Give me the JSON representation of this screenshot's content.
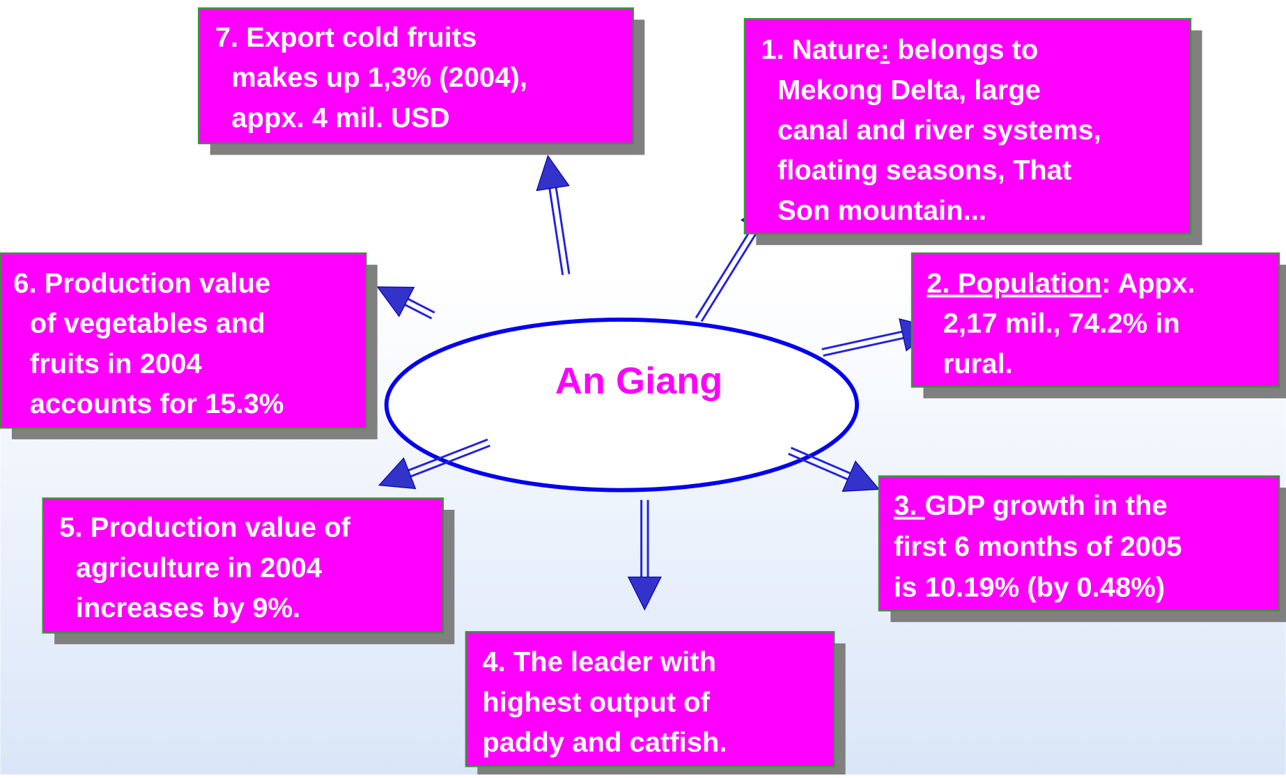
{
  "center": "An Giang",
  "nodes": [
    {
      "lines": [
        [
          "1. Nature",
          ":",
          " belongs to"
        ],
        "Mekong Delta, large",
        "canal and river systems,",
        "floating seasons, That",
        "Son mountain..."
      ]
    },
    {
      "lines": [
        [
          "2. Population",
          ": Appx."
        ],
        "2,17 mil., 74.2% in",
        "rural."
      ]
    },
    {
      "lines": [
        [
          "3. ",
          "GDP growth in the"
        ],
        "first 6 months of 2005",
        "is 10.19% (by 0.48%)"
      ]
    },
    {
      "lines": [
        "4. The leader with",
        "highest output of",
        "paddy and catfish."
      ]
    },
    {
      "lines": [
        "5. Production value of",
        "agriculture in 2004",
        "increases by 9%."
      ]
    },
    {
      "lines": [
        "6. Production value",
        "of vegetables and",
        "fruits in 2004",
        "accounts for 15.3%"
      ]
    },
    {
      "lines": [
        "7. Export cold fruits",
        "makes up 1,3% (2004),",
        "appx. 4 mil. USD"
      ]
    }
  ]
}
